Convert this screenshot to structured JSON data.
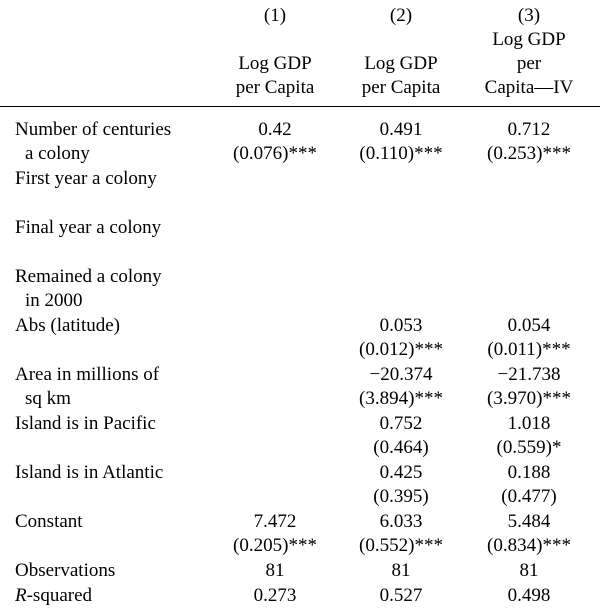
{
  "columns": [
    {
      "number": "(1)",
      "head_lines": [
        "",
        "Log GDP",
        "per Capita"
      ]
    },
    {
      "number": "(2)",
      "head_lines": [
        "",
        "Log GDP",
        "per Capita"
      ]
    },
    {
      "number": "(3)",
      "head_lines": [
        "Log GDP",
        "per",
        "Capita—IV"
      ]
    }
  ],
  "rows": {
    "centuries": {
      "label": [
        "Number of centuries",
        "a colony"
      ],
      "c1": [
        "0.42",
        "(0.076)***"
      ],
      "c2": [
        "0.491",
        "(0.110)***"
      ],
      "c3": [
        "0.712",
        "(0.253)***"
      ]
    },
    "first_year": {
      "label": [
        "First year a colony"
      ]
    },
    "final_year": {
      "label": [
        "Final year a colony"
      ]
    },
    "remained": {
      "label": [
        "Remained a colony",
        "in 2000"
      ]
    },
    "abs_latitude": {
      "label": [
        "Abs  (latitude)"
      ],
      "c2": [
        "0.053",
        "(0.012)***"
      ],
      "c3": [
        "0.054",
        "(0.011)***"
      ]
    },
    "area": {
      "label": [
        "Area in millions of",
        "sq km"
      ],
      "c2": [
        "−20.374",
        "(3.894)***"
      ],
      "c3": [
        "−21.738",
        "(3.970)***"
      ]
    },
    "pacific": {
      "label": [
        "Island is in Pacific"
      ],
      "c2": [
        "0.752",
        "(0.464)"
      ],
      "c3": [
        "1.018",
        "(0.559)*"
      ]
    },
    "atlantic": {
      "label": [
        "Island is in Atlantic"
      ],
      "c2": [
        "0.425",
        "(0.395)"
      ],
      "c3": [
        "0.188",
        "(0.477)"
      ]
    },
    "constant": {
      "label": [
        "Constant"
      ],
      "c1": [
        "7.472",
        "(0.205)***"
      ],
      "c2": [
        "6.033",
        "(0.552)***"
      ],
      "c3": [
        "5.484",
        "(0.834)***"
      ]
    },
    "observations": {
      "label": [
        "Observations"
      ],
      "c1": [
        "81"
      ],
      "c2": [
        "81"
      ],
      "c3": [
        "81"
      ]
    },
    "r_squared": {
      "label_italic": "R",
      "label_rest": "-squared",
      "c1": [
        "0.273"
      ],
      "c2": [
        "0.527"
      ],
      "c3": [
        "0.498"
      ]
    }
  }
}
